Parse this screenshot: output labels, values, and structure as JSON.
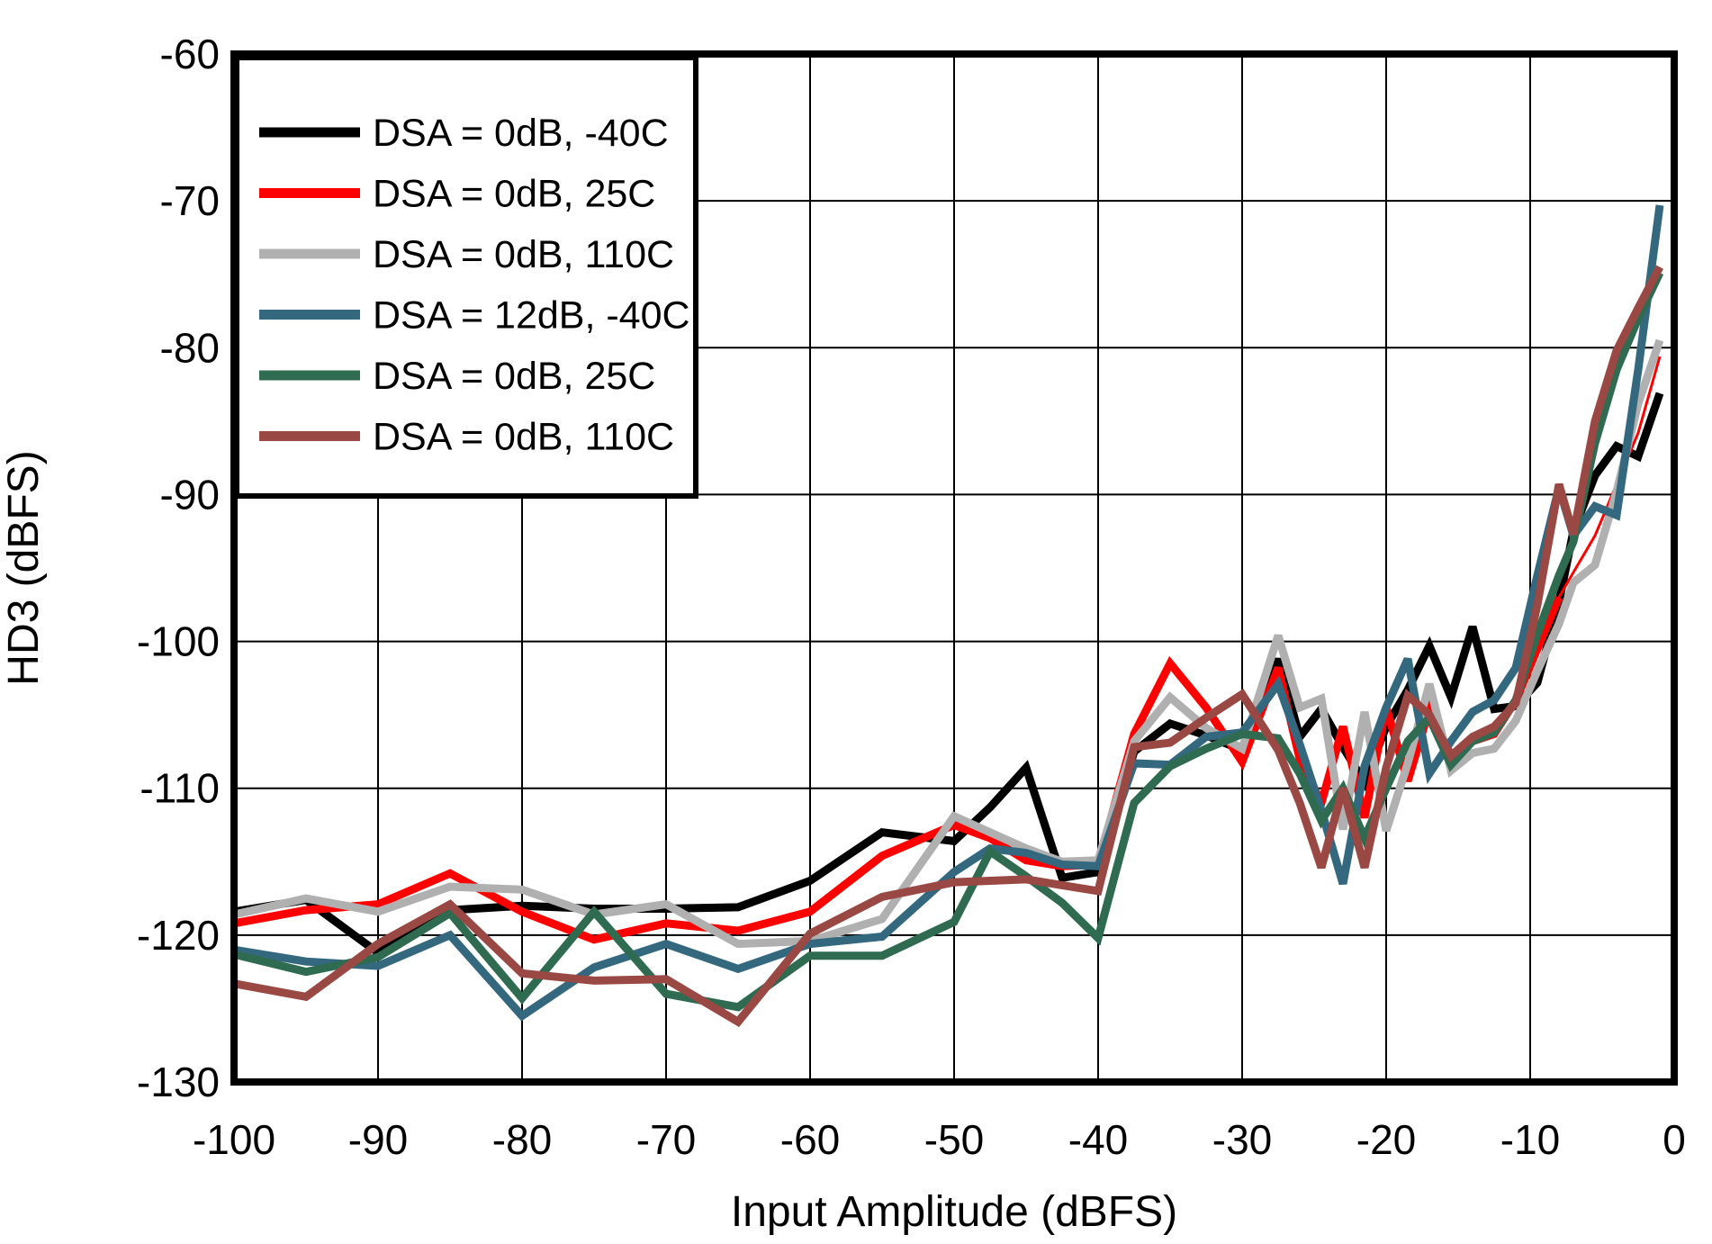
{
  "chart_data": {
    "type": "line",
    "title": "",
    "xlabel": "Input Amplitude (dBFS)",
    "ylabel": "HD3 (dBFS)",
    "xlim": [
      -100,
      0
    ],
    "ylim": [
      -130,
      -60
    ],
    "x_ticks": [
      -100,
      -90,
      -80,
      -70,
      -60,
      -50,
      -40,
      -30,
      -20,
      -10,
      0
    ],
    "y_ticks": [
      -60,
      -70,
      -80,
      -90,
      -100,
      -110,
      -120,
      -130
    ],
    "grid": true,
    "legend_position": "top-left",
    "axis_color": "#000000",
    "grid_color": "#000000",
    "background_color": "#ffffff",
    "x": [
      -100,
      -95,
      -90,
      -85,
      -80,
      -75,
      -70,
      -65,
      -60,
      -55,
      -50,
      -47.5,
      -45,
      -42.5,
      -40,
      -37.5,
      -35,
      -32.5,
      -30,
      -27.5,
      -26,
      -24.5,
      -23,
      -21.5,
      -20,
      -18.5,
      -17,
      -15.5,
      -14,
      -12.5,
      -11,
      -9.5,
      -8,
      -7,
      -5.5,
      -4,
      -2.5,
      -1
    ],
    "series": [
      {
        "name": "DSA = 0dB, -40C",
        "color": "#000000",
        "line_width": 9,
        "values": [
          -118.4,
          -117.6,
          -121.2,
          -118.3,
          -118.0,
          -118.2,
          -118.2,
          -118.1,
          -116.3,
          -113.0,
          -113.6,
          -111.3,
          -108.6,
          -116.1,
          -115.7,
          -107.5,
          -105.6,
          -106.4,
          -107.4,
          -101.2,
          -106.5,
          -104.6,
          -107.2,
          -109.6,
          -105.8,
          -103.3,
          -100.3,
          -103.8,
          -99.0,
          -104.6,
          -104.4,
          -102.8,
          -97.3,
          -92.5,
          -88.7,
          -86.7,
          -87.4,
          -83.1
        ]
      },
      {
        "name": "DSA = 0dB, 25C",
        "color": "#ff0000",
        "line_width": 9,
        "tail": {
          "from": -8,
          "width": 3
        },
        "values": [
          -119.2,
          -118.3,
          -117.9,
          -115.8,
          -118.4,
          -120.3,
          -119.2,
          -119.7,
          -118.4,
          -114.6,
          -112.5,
          -113.4,
          -114.9,
          -115.3,
          -115.2,
          -106.3,
          -101.5,
          -104.5,
          -108.2,
          -101.8,
          -108.0,
          -111.0,
          -105.8,
          -112.0,
          -104.5,
          -109.5,
          -104.6,
          -107.8,
          -106.8,
          -106.3,
          -104.0,
          -100.5,
          -97.0,
          -95.3,
          -92.8,
          -89.3,
          -85.8,
          -80.6
        ]
      },
      {
        "name": "DSA = 0dB, 110C",
        "color": "#b0b0b0",
        "line_width": 9,
        "values": [
          -118.6,
          -117.5,
          -118.4,
          -116.7,
          -116.9,
          -118.6,
          -117.9,
          -120.6,
          -120.4,
          -118.9,
          -111.9,
          -113.0,
          -114.1,
          -115.0,
          -114.9,
          -106.8,
          -103.8,
          -105.9,
          -107.3,
          -99.6,
          -104.5,
          -103.9,
          -112.8,
          -104.8,
          -112.9,
          -108.3,
          -102.9,
          -108.8,
          -107.6,
          -107.3,
          -105.4,
          -102.0,
          -98.8,
          -96.0,
          -94.8,
          -89.8,
          -83.8,
          -79.5
        ]
      },
      {
        "name": "DSA = 12dB, -40C",
        "color": "#34687f",
        "line_width": 9,
        "values": [
          -121.0,
          -121.8,
          -122.1,
          -120.0,
          -125.5,
          -122.2,
          -120.6,
          -122.3,
          -120.6,
          -120.1,
          -115.7,
          -114.1,
          -114.4,
          -115.2,
          -115.3,
          -108.3,
          -108.4,
          -106.5,
          -106.2,
          -102.9,
          -107.0,
          -111.5,
          -116.5,
          -108.5,
          -104.5,
          -101.2,
          -109.0,
          -106.8,
          -104.8,
          -104.0,
          -101.8,
          -95.5,
          -89.5,
          -92.8,
          -90.8,
          -91.4,
          -81.5,
          -70.3
        ]
      },
      {
        "name": "DSA = 0dB, 25C",
        "color": "#2f6b51",
        "line_width": 9,
        "values": [
          -121.3,
          -122.5,
          -121.5,
          -118.5,
          -124.3,
          -118.4,
          -124.0,
          -124.9,
          -121.4,
          -121.4,
          -119.1,
          -114.3,
          -116.0,
          -117.8,
          -120.2,
          -111.0,
          -108.5,
          -107.3,
          -106.3,
          -106.6,
          -109.0,
          -112.2,
          -110.0,
          -113.4,
          -110.0,
          -106.8,
          -105.2,
          -108.4,
          -106.8,
          -106.2,
          -104.0,
          -99.5,
          -95.5,
          -93.2,
          -86.5,
          -81.5,
          -78.0,
          -74.9
        ]
      },
      {
        "name": "DSA = 0dB, 110C",
        "color": "#9a4843",
        "line_width": 9,
        "values": [
          -123.3,
          -124.2,
          -120.6,
          -117.9,
          -122.6,
          -123.1,
          -123.0,
          -125.9,
          -119.9,
          -117.4,
          -116.4,
          -116.3,
          -116.2,
          -116.6,
          -117.0,
          -107.2,
          -106.9,
          -105.2,
          -103.6,
          -107.4,
          -111.0,
          -115.4,
          -110.0,
          -115.4,
          -108.6,
          -103.7,
          -105.0,
          -107.8,
          -106.5,
          -105.8,
          -104.2,
          -97.5,
          -89.3,
          -92.7,
          -85.0,
          -80.2,
          -77.3,
          -74.5
        ]
      }
    ]
  }
}
